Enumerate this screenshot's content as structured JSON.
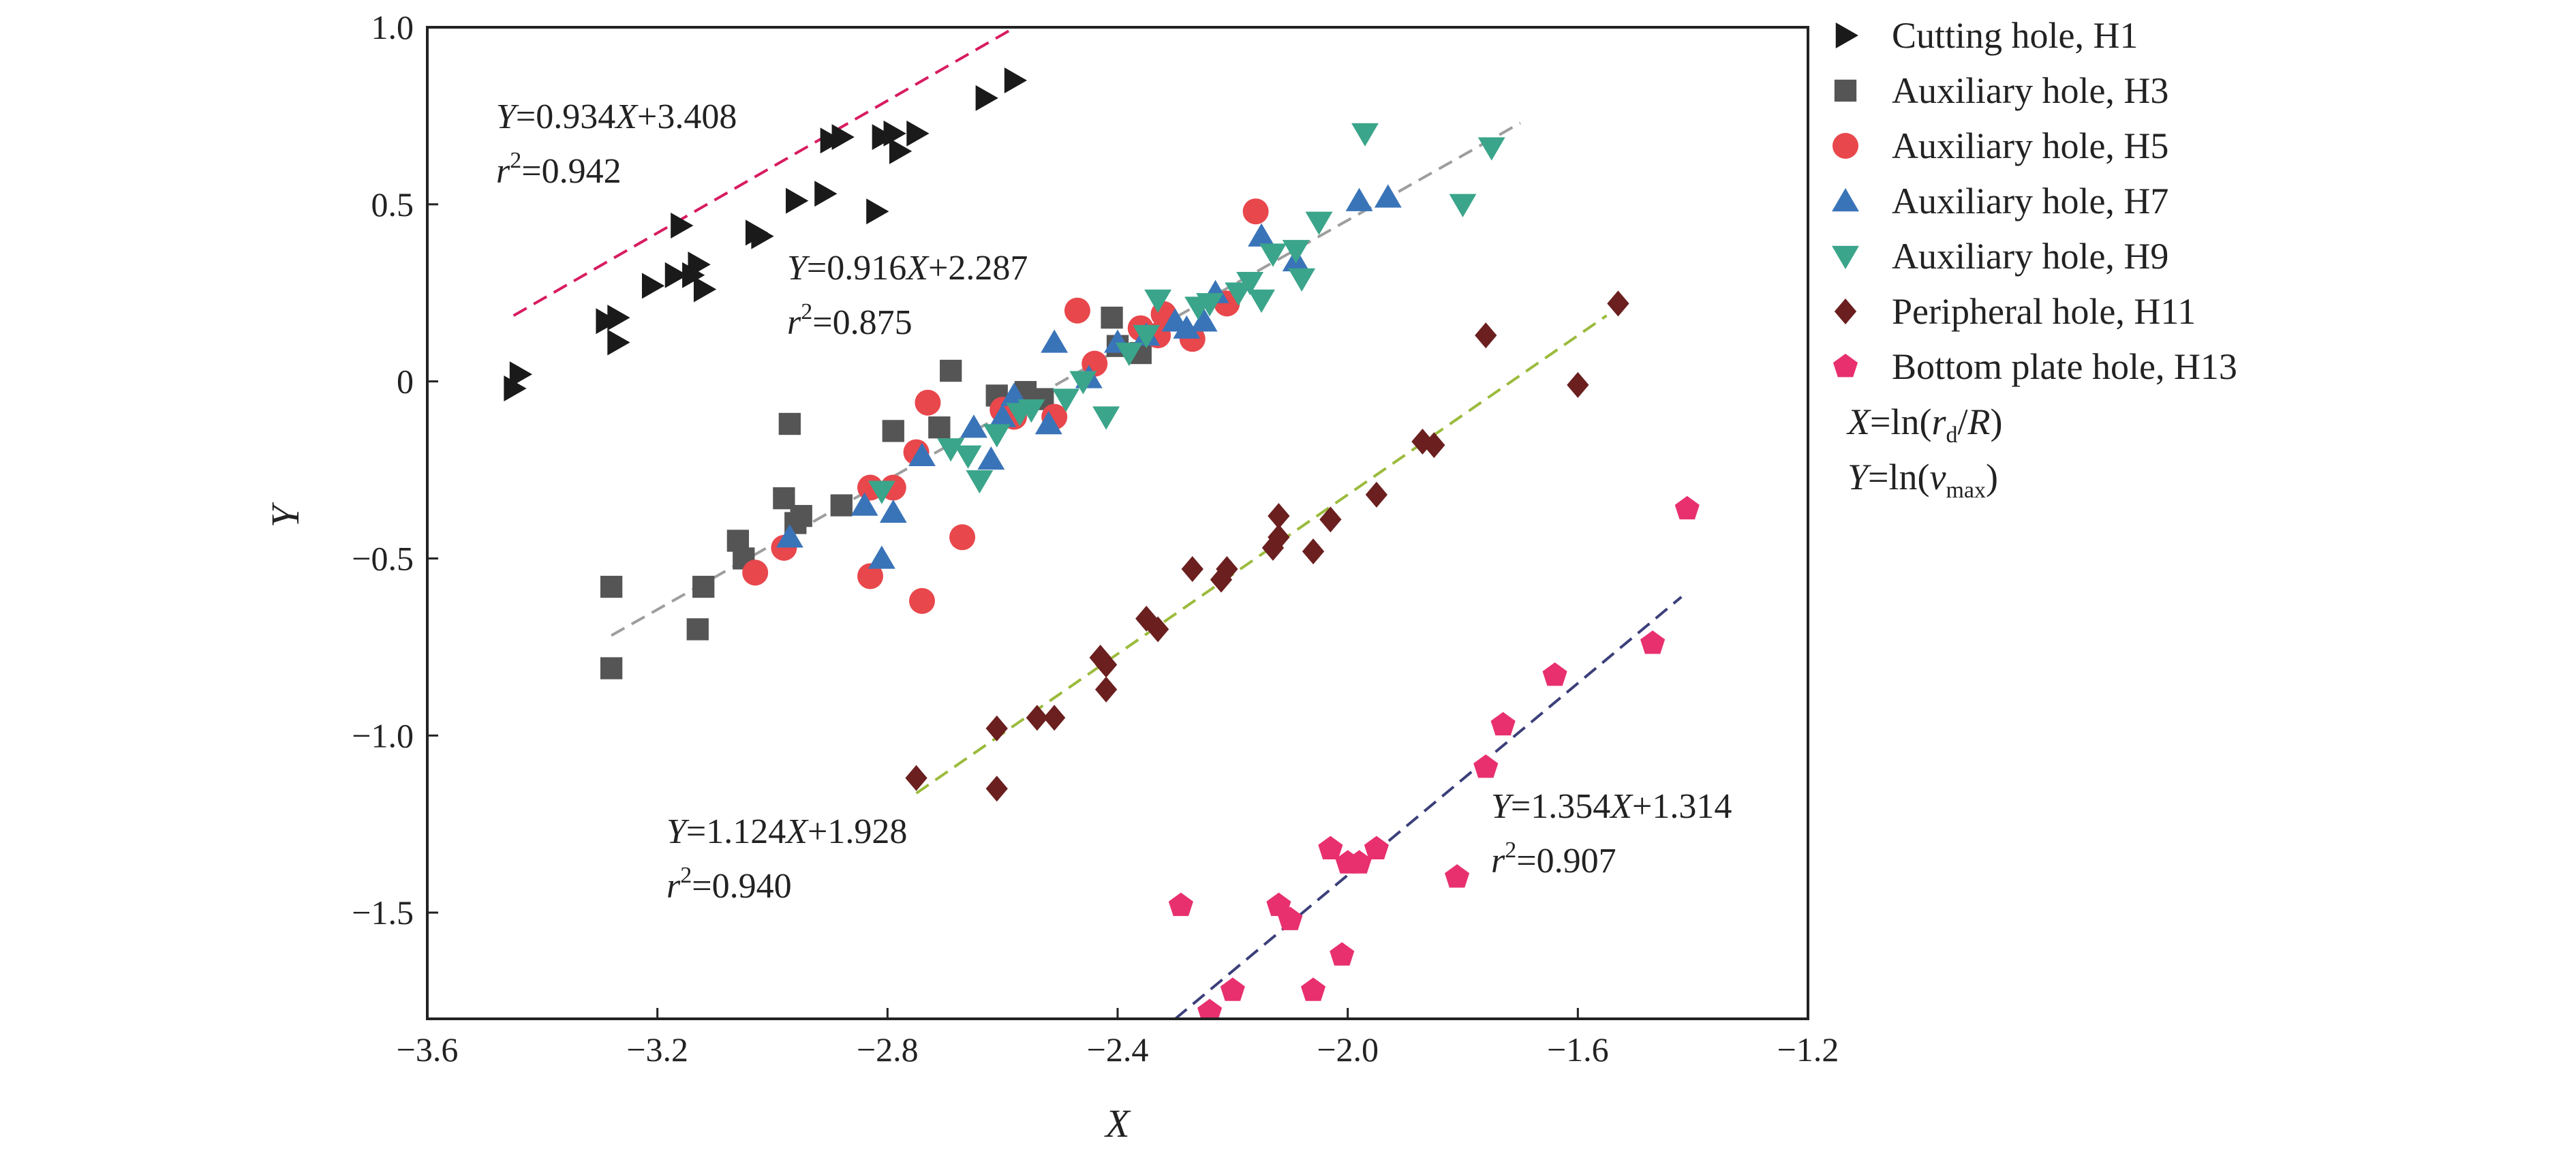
{
  "chart_data": {
    "type": "scatter",
    "xlabel": "X",
    "ylabel": "Y",
    "xlim": [
      -3.6,
      -1.2
    ],
    "ylim": [
      -1.8,
      1.0
    ],
    "x_ticks": [
      "-3.6",
      "-3.2",
      "-2.8",
      "-2.4",
      "-2.0",
      "-1.6",
      "-1.2"
    ],
    "y_ticks": [
      "1.0",
      "0.5",
      "0",
      "-0.5",
      "-1.0",
      "-1.5"
    ],
    "grid": false,
    "legend_position": "right",
    "legend_notes": [
      {
        "lhs": "X",
        "fn": "=ln(",
        "a": "r",
        "a_sub": "d",
        "b": "/",
        "c": "R",
        "end": ")"
      },
      {
        "lhs": "Y",
        "fn": "=ln(",
        "a": "v",
        "a_sub": "max",
        "end": ")"
      }
    ],
    "series": [
      {
        "name": "Cutting hole, H1",
        "marker": "triangle-right",
        "color": "#1a1a1a",
        "fit": {
          "slope": 0.934,
          "intercept": 3.408,
          "r2": "0.942",
          "x_range": [
            -3.45,
            -2.55
          ],
          "color": "#d81b60",
          "eq_parts": [
            "Y",
            "=0.934",
            "X",
            "+3.408"
          ],
          "r2_text": "=0.942"
        },
        "points": [
          [
            -3.44,
            0.02
          ],
          [
            -3.45,
            -0.02
          ],
          [
            -3.29,
            0.17
          ],
          [
            -3.27,
            0.18
          ],
          [
            -3.27,
            0.11
          ],
          [
            -3.21,
            0.27
          ],
          [
            -3.17,
            0.3
          ],
          [
            -3.16,
            0.44
          ],
          [
            -3.14,
            0.3
          ],
          [
            -3.13,
            0.33
          ],
          [
            -3.12,
            0.26
          ],
          [
            -3.03,
            0.42
          ],
          [
            -3.02,
            0.41
          ],
          [
            -2.96,
            0.51
          ],
          [
            -2.91,
            0.53
          ],
          [
            -2.9,
            0.68
          ],
          [
            -2.88,
            0.69
          ],
          [
            -2.81,
            0.69
          ],
          [
            -2.79,
            0.7
          ],
          [
            -2.78,
            0.65
          ],
          [
            -2.75,
            0.7
          ],
          [
            -2.82,
            0.48
          ],
          [
            -2.63,
            0.8
          ],
          [
            -2.58,
            0.85
          ]
        ]
      },
      {
        "name": "Auxiliary hole, H3",
        "marker": "square",
        "color": "#555555",
        "points": [
          [
            -3.28,
            -0.58
          ],
          [
            -3.28,
            -0.81
          ],
          [
            -3.13,
            -0.7
          ],
          [
            -3.12,
            -0.58
          ],
          [
            -3.06,
            -0.45
          ],
          [
            -3.05,
            -0.5
          ],
          [
            -2.98,
            -0.33
          ],
          [
            -2.97,
            -0.12
          ],
          [
            -2.96,
            -0.4
          ],
          [
            -2.95,
            -0.38
          ],
          [
            -2.88,
            -0.35
          ],
          [
            -2.79,
            -0.14
          ],
          [
            -2.71,
            -0.13
          ],
          [
            -2.69,
            0.03
          ],
          [
            -2.61,
            -0.04
          ],
          [
            -2.56,
            -0.03
          ],
          [
            -2.53,
            -0.05
          ],
          [
            -2.41,
            0.18
          ],
          [
            -2.4,
            0.1
          ],
          [
            -2.36,
            0.08
          ]
        ]
      },
      {
        "name": "Auxiliary hole, H5",
        "marker": "circle",
        "color": "#e8474c",
        "points": [
          [
            -3.03,
            -0.54
          ],
          [
            -2.98,
            -0.47
          ],
          [
            -2.83,
            -0.3
          ],
          [
            -2.83,
            -0.55
          ],
          [
            -2.79,
            -0.3
          ],
          [
            -2.75,
            -0.2
          ],
          [
            -2.74,
            -0.62
          ],
          [
            -2.73,
            -0.06
          ],
          [
            -2.67,
            -0.44
          ],
          [
            -2.6,
            -0.08
          ],
          [
            -2.58,
            -0.1
          ],
          [
            -2.51,
            -0.1
          ],
          [
            -2.47,
            0.2
          ],
          [
            -2.44,
            0.05
          ],
          [
            -2.33,
            0.13
          ],
          [
            -2.32,
            0.19
          ],
          [
            -2.21,
            0.22
          ],
          [
            -2.16,
            0.48
          ],
          [
            -2.36,
            0.15
          ],
          [
            -2.27,
            0.12
          ]
        ]
      },
      {
        "name": "Auxiliary hole, H7",
        "marker": "triangle-up",
        "color": "#3a74b8",
        "fit": {
          "slope": 0.916,
          "intercept": 2.287,
          "r2": "0.875",
          "x_range": [
            -3.28,
            -1.7
          ],
          "color": "#9e9e9e",
          "eq_parts": [
            "Y",
            "=0.916",
            "X",
            "+2.287"
          ],
          "r2_text": "=0.875"
        },
        "points": [
          [
            -2.97,
            -0.44
          ],
          [
            -2.84,
            -0.35
          ],
          [
            -2.81,
            -0.5
          ],
          [
            -2.79,
            -0.37
          ],
          [
            -2.74,
            -0.21
          ],
          [
            -2.65,
            -0.13
          ],
          [
            -2.62,
            -0.22
          ],
          [
            -2.6,
            -0.1
          ],
          [
            -2.52,
            -0.12
          ],
          [
            -2.51,
            0.11
          ],
          [
            -2.45,
            0.01
          ],
          [
            -2.4,
            0.11
          ],
          [
            -2.35,
            0.13
          ],
          [
            -2.3,
            0.17
          ],
          [
            -2.28,
            0.15
          ],
          [
            -2.25,
            0.17
          ],
          [
            -2.23,
            0.25
          ],
          [
            -2.15,
            0.41
          ],
          [
            -2.09,
            0.34
          ],
          [
            -1.98,
            0.51
          ],
          [
            -1.93,
            0.52
          ],
          [
            -2.58,
            -0.04
          ]
        ]
      },
      {
        "name": "Auxiliary hole, H9",
        "marker": "triangle-down",
        "color": "#3aa58a",
        "points": [
          [
            -2.81,
            -0.31
          ],
          [
            -2.69,
            -0.19
          ],
          [
            -2.66,
            -0.21
          ],
          [
            -2.64,
            -0.28
          ],
          [
            -2.61,
            -0.15
          ],
          [
            -2.57,
            -0.09
          ],
          [
            -2.55,
            -0.08
          ],
          [
            -2.49,
            -0.05
          ],
          [
            -2.46,
            0.0
          ],
          [
            -2.42,
            -0.1
          ],
          [
            -2.38,
            0.08
          ],
          [
            -2.35,
            0.13
          ],
          [
            -2.33,
            0.23
          ],
          [
            -2.26,
            0.21
          ],
          [
            -2.24,
            0.22
          ],
          [
            -2.19,
            0.25
          ],
          [
            -2.17,
            0.28
          ],
          [
            -2.15,
            0.23
          ],
          [
            -2.13,
            0.36
          ],
          [
            -2.09,
            0.37
          ],
          [
            -2.08,
            0.29
          ],
          [
            -2.05,
            0.45
          ],
          [
            -1.97,
            0.7
          ],
          [
            -1.8,
            0.5
          ],
          [
            -1.75,
            0.66
          ]
        ]
      },
      {
        "name": "Peripheral hole, H11",
        "marker": "diamond",
        "color": "#6b1f1f",
        "fit": {
          "slope": 1.124,
          "intercept": 1.928,
          "r2": "0.940",
          "x_range": [
            -2.75,
            -1.55
          ],
          "color": "#9bbb3c",
          "eq_parts": [
            "Y",
            "=1.124",
            "X",
            "+1.928"
          ],
          "r2_text": "=0.940"
        },
        "points": [
          [
            -2.75,
            -1.12
          ],
          [
            -2.61,
            -0.98
          ],
          [
            -2.61,
            -1.15
          ],
          [
            -2.54,
            -0.95
          ],
          [
            -2.51,
            -0.95
          ],
          [
            -2.43,
            -0.78
          ],
          [
            -2.42,
            -0.8
          ],
          [
            -2.42,
            -0.87
          ],
          [
            -2.35,
            -0.67
          ],
          [
            -2.33,
            -0.7
          ],
          [
            -2.27,
            -0.53
          ],
          [
            -2.22,
            -0.56
          ],
          [
            -2.21,
            -0.53
          ],
          [
            -2.13,
            -0.47
          ],
          [
            -2.12,
            -0.44
          ],
          [
            -2.12,
            -0.38
          ],
          [
            -2.06,
            -0.48
          ],
          [
            -2.03,
            -0.39
          ],
          [
            -1.95,
            -0.32
          ],
          [
            -1.87,
            -0.17
          ],
          [
            -1.85,
            -0.18
          ],
          [
            -1.76,
            0.13
          ],
          [
            -1.6,
            -0.01
          ],
          [
            -1.53,
            0.22
          ]
        ]
      },
      {
        "name": "Bottom plate hole, H13",
        "marker": "pentagon",
        "color": "#e8306f",
        "fit": {
          "slope": 1.354,
          "intercept": 1.314,
          "r2": "0.907",
          "x_range": [
            -2.3,
            -1.42
          ],
          "color": "#3b3f7a",
          "eq_parts": [
            "Y",
            "=1.354",
            "X",
            "+1.314"
          ],
          "r2_text": "=0.907"
        },
        "points": [
          [
            -2.29,
            -1.48
          ],
          [
            -2.24,
            -1.78
          ],
          [
            -2.2,
            -1.72
          ],
          [
            -2.12,
            -1.48
          ],
          [
            -2.1,
            -1.52
          ],
          [
            -2.06,
            -1.72
          ],
          [
            -2.03,
            -1.32
          ],
          [
            -2.01,
            -1.62
          ],
          [
            -2.0,
            -1.36
          ],
          [
            -1.98,
            -1.36
          ],
          [
            -1.95,
            -1.32
          ],
          [
            -1.81,
            -1.4
          ],
          [
            -1.76,
            -1.09
          ],
          [
            -1.73,
            -0.97
          ],
          [
            -1.64,
            -0.83
          ],
          [
            -1.47,
            -0.74
          ],
          [
            -1.41,
            -0.36
          ]
        ]
      }
    ]
  }
}
